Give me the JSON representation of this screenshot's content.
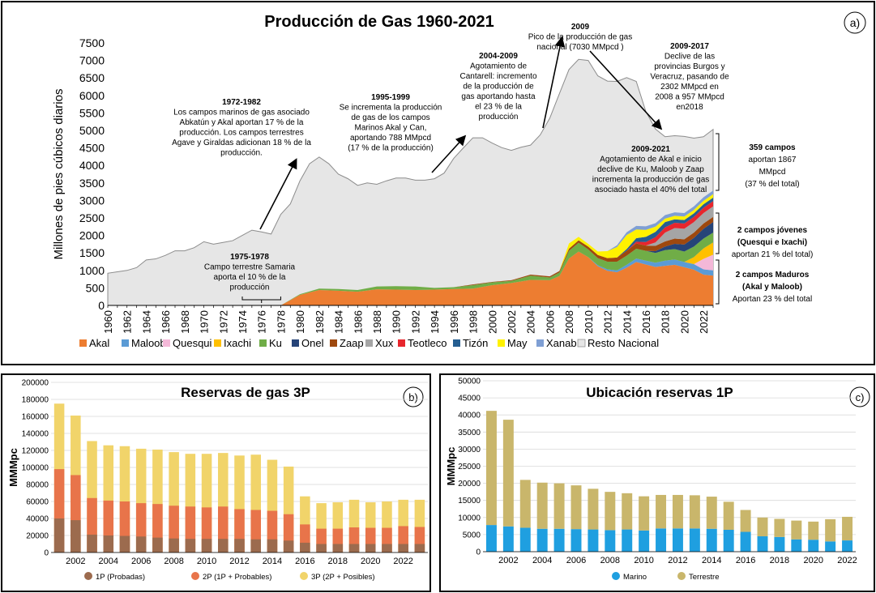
{
  "panel_a": {
    "label": "a)",
    "chart_data": {
      "type": "area",
      "title": "Producción de Gas 1960-2021",
      "ylabel": "Millones de pies cúbicos diarios",
      "xlabel": "",
      "ylim": [
        0,
        7500
      ],
      "xlim": [
        1960,
        2023
      ],
      "yticks": [
        "0",
        "500",
        "1000",
        "1500",
        "2000",
        "2500",
        "3000",
        "3500",
        "4000",
        "4500",
        "5000",
        "5500",
        "6000",
        "6500",
        "7000",
        "7500"
      ],
      "xticks": [
        "1960",
        "1962",
        "1964",
        "1966",
        "1968",
        "1970",
        "1972",
        "1974",
        "1976",
        "1978",
        "1980",
        "1982",
        "1984",
        "1986",
        "1988",
        "1990",
        "1992",
        "1994",
        "1996",
        "1998",
        "2000",
        "2002",
        "2004",
        "2006",
        "2008",
        "2010",
        "2012",
        "2014",
        "2016",
        "2018",
        "2020",
        "2022"
      ],
      "total": {
        "name": "Resto Nacional",
        "x": [
          1960,
          1961,
          1962,
          1963,
          1964,
          1965,
          1966,
          1967,
          1968,
          1969,
          1970,
          1971,
          1972,
          1973,
          1974,
          1975,
          1976,
          1977,
          1978,
          1979,
          1980,
          1981,
          1982,
          1983,
          1984,
          1985,
          1986,
          1987,
          1988,
          1989,
          1990,
          1991,
          1992,
          1993,
          1994,
          1995,
          1996,
          1997,
          1998,
          1999,
          2000,
          2001,
          2002,
          2003,
          2004,
          2005,
          2006,
          2007,
          2008,
          2009,
          2010,
          2011,
          2012,
          2013,
          2014,
          2015,
          2016,
          2017,
          2018,
          2019,
          2020,
          2021,
          2022,
          2023
        ],
        "values": [
          920,
          960,
          1000,
          1080,
          1300,
          1330,
          1430,
          1560,
          1560,
          1650,
          1820,
          1750,
          1800,
          1850,
          2000,
          2150,
          2100,
          2040,
          2600,
          2900,
          3560,
          4050,
          4240,
          4050,
          3750,
          3620,
          3430,
          3500,
          3460,
          3560,
          3640,
          3640,
          3580,
          3580,
          3620,
          3780,
          4200,
          4500,
          4790,
          4790,
          4640,
          4510,
          4430,
          4520,
          4580,
          4870,
          5350,
          6050,
          6740,
          7030,
          7000,
          6560,
          6410,
          6400,
          6510,
          6400,
          5540,
          5040,
          4820,
          4850,
          4830,
          4780,
          4820,
          5030
        ]
      },
      "stacked_series": {
        "x": [
          1978,
          1980,
          1982,
          1984,
          1986,
          1988,
          1990,
          1992,
          1994,
          1996,
          1998,
          2000,
          2002,
          2004,
          2006,
          2007,
          2008,
          2009,
          2010,
          2011,
          2012,
          2013,
          2014,
          2015,
          2016,
          2017,
          2018,
          2019,
          2020,
          2021,
          2022,
          2023
        ],
        "series": [
          {
            "name": "Akal",
            "color": "#ED7D31",
            "values": [
              0,
              300,
              440,
              420,
              390,
              460,
              450,
              440,
              450,
              470,
              480,
              580,
              640,
              730,
              720,
              840,
              1340,
              1540,
              1380,
              1120,
              990,
              950,
              1080,
              1240,
              1170,
              1100,
              1130,
              1160,
              1090,
              1020,
              880,
              850
            ]
          },
          {
            "name": "Maloob",
            "color": "#5B9BD5",
            "values": [
              0,
              0,
              0,
              0,
              0,
              0,
              0,
              0,
              0,
              0,
              0,
              0,
              0,
              0,
              0,
              0,
              0,
              0,
              0,
              30,
              40,
              50,
              80,
              100,
              110,
              120,
              150,
              150,
              150,
              160,
              150,
              150
            ]
          },
          {
            "name": "Quesqui",
            "color": "#F4B8D8",
            "values": [
              0,
              0,
              0,
              0,
              0,
              0,
              0,
              0,
              0,
              0,
              0,
              0,
              0,
              0,
              0,
              0,
              0,
              0,
              0,
              0,
              0,
              0,
              0,
              0,
              0,
              0,
              0,
              0,
              0,
              0,
              300,
              450
            ]
          },
          {
            "name": "Ixachi",
            "color": "#FFC000",
            "values": [
              0,
              0,
              0,
              0,
              0,
              0,
              0,
              0,
              0,
              0,
              0,
              0,
              0,
              0,
              0,
              0,
              0,
              0,
              0,
              0,
              0,
              0,
              0,
              0,
              0,
              0,
              0,
              0,
              0,
              200,
              300,
              350
            ]
          },
          {
            "name": "Ku",
            "color": "#70AD47",
            "values": [
              0,
              20,
              40,
              50,
              50,
              80,
              100,
              100,
              50,
              50,
              100,
              80,
              60,
              120,
              80,
              100,
              220,
              250,
              220,
              200,
              220,
              250,
              260,
              280,
              280,
              280,
              300,
              300,
              300,
              300,
              280,
              280
            ]
          },
          {
            "name": "Onel",
            "color": "#264478",
            "values": [
              0,
              0,
              0,
              0,
              0,
              0,
              0,
              0,
              0,
              0,
              0,
              0,
              0,
              0,
              0,
              0,
              0,
              0,
              0,
              0,
              0,
              0,
              0,
              0,
              0,
              50,
              100,
              150,
              200,
              250,
              280,
              300
            ]
          },
          {
            "name": "Zaap",
            "color": "#9E480E",
            "values": [
              0,
              0,
              0,
              0,
              0,
              0,
              0,
              0,
              0,
              0,
              20,
              10,
              20,
              30,
              30,
              40,
              60,
              70,
              80,
              90,
              100,
              120,
              140,
              150,
              150,
              150,
              150,
              150,
              150,
              150,
              150,
              150
            ]
          },
          {
            "name": "Xux",
            "color": "#A5A5A5",
            "values": [
              0,
              0,
              0,
              0,
              0,
              0,
              0,
              0,
              0,
              0,
              0,
              0,
              0,
              0,
              0,
              0,
              0,
              0,
              0,
              0,
              0,
              0,
              0,
              0,
              0,
              100,
              250,
              300,
              300,
              300,
              300,
              300
            ]
          },
          {
            "name": "Teotleco",
            "color": "#E7262D",
            "values": [
              0,
              0,
              0,
              0,
              0,
              0,
              0,
              0,
              0,
              0,
              0,
              0,
              0,
              0,
              0,
              0,
              0,
              0,
              0,
              0,
              0,
              0,
              0,
              50,
              100,
              150,
              150,
              150,
              150,
              150,
              150,
              150
            ]
          },
          {
            "name": "Tizón",
            "color": "#255E91",
            "values": [
              0,
              0,
              0,
              0,
              0,
              0,
              0,
              0,
              0,
              0,
              0,
              0,
              0,
              0,
              0,
              0,
              0,
              0,
              0,
              0,
              0,
              0,
              50,
              100,
              150,
              150,
              150,
              100,
              100,
              100,
              100,
              100
            ]
          },
          {
            "name": "May",
            "color": "#FFF200",
            "values": [
              0,
              0,
              0,
              0,
              0,
              0,
              0,
              0,
              0,
              0,
              0,
              0,
              0,
              0,
              0,
              0,
              150,
              100,
              80,
              100,
              200,
              300,
              400,
              250,
              200,
              150,
              100,
              100,
              100,
              100,
              100,
              100
            ]
          },
          {
            "name": "Xanab",
            "color": "#7F9FD4",
            "values": [
              0,
              0,
              0,
              0,
              0,
              0,
              0,
              0,
              0,
              0,
              0,
              0,
              0,
              0,
              0,
              0,
              0,
              0,
              0,
              0,
              0,
              50,
              80,
              100,
              100,
              100,
              100,
              100,
              100,
              100,
              100,
              100
            ]
          }
        ]
      },
      "legend": [
        "Akal",
        "Maloob",
        "Quesqui",
        "Ixachi",
        "Ku",
        "Onel",
        "Zaap",
        "Xux",
        "Teotleco",
        "Tizón",
        "May",
        "Xanab",
        "Resto Nacional"
      ]
    },
    "annotations": {
      "a1972": [
        "1972-1982",
        "Los campos marinos de gas asociado",
        "Abkatún y Akal aportan 17 % de la",
        "producción. Los campos terrestres",
        "Agave y Giraldas adicionan 18 % de la",
        "producción."
      ],
      "a1975": [
        "1975-1978",
        "Campo terrestre Samaria",
        "aporta el 10 %  de la",
        "producción"
      ],
      "a1995": [
        "1995-1999",
        "Se incrementa la producción",
        "de gas de  los campos",
        "Marinos Akal  y Can,",
        "aportando 788 MMpcd",
        "(17 % de la producción)"
      ],
      "a2004": [
        "2004-2009",
        "Agotamiento de",
        "Cantarell: incremento",
        "de la producción de",
        "gas aportando  hasta",
        "el 23 % de la",
        "producción"
      ],
      "a2009": [
        "2009",
        "Pico de la producción de gas",
        "nacional (7030 MMpcd )"
      ],
      "a20092017": [
        "2009-2017",
        "Declive de las",
        "provincias Burgos y",
        "Veracruz, pasando de",
        "2302 MMpcd  en",
        "2008 a 957 MMpcd",
        "en2018"
      ],
      "a20092021": [
        "2009-2021",
        "Agotamiento de Akal e inicio",
        "declive de Ku, Maloob y Zaap",
        "incrementa la producción de gas",
        "asociado hasta el 40% del total"
      ],
      "r359": [
        "359 campos",
        "aportan 1867",
        "MMpcd",
        "(37 % del total)"
      ],
      "rJovenes": [
        "2 campos jóvenes",
        "(Quesqui e Ixachi)",
        "aportan 21 % del total)"
      ],
      "rMaduros": [
        "2 campos Maduros",
        "(Akal y Maloob)",
        "Aportan 23 % del total"
      ]
    }
  },
  "panel_b": {
    "label": "b)",
    "chart_data": {
      "type": "bar",
      "title": "Reservas de gas 3P",
      "ylabel": "MMMpc",
      "ylim": [
        0,
        200000
      ],
      "yticks": [
        "0",
        "20000",
        "40000",
        "60000",
        "80000",
        "100000",
        "120000",
        "140000",
        "160000",
        "180000",
        "200000"
      ],
      "categories": [
        "2001",
        "2002",
        "2003",
        "2004",
        "2005",
        "2006",
        "2007",
        "2008",
        "2009",
        "2010",
        "2011",
        "2012",
        "2013",
        "2014",
        "2015",
        "2016",
        "2017",
        "2018",
        "2019",
        "2020",
        "2021",
        "2022",
        "2023"
      ],
      "xticks": [
        "2002",
        "2004",
        "2006",
        "2008",
        "2010",
        "2012",
        "2014",
        "2016",
        "2018",
        "2020",
        "2022"
      ],
      "series": [
        {
          "name": "1P (Probadas)",
          "color": "#9C6B4E",
          "values": [
            40000,
            38000,
            21000,
            20000,
            19500,
            18800,
            17500,
            16500,
            16000,
            16000,
            16000,
            16000,
            15500,
            15500,
            14000,
            11500,
            10000,
            10000,
            10000,
            10000,
            10000,
            10000,
            10000
          ]
        },
        {
          "name": "2P (1P + Probables)",
          "color": "#E8744A",
          "values": [
            98000,
            91000,
            64000,
            61000,
            60000,
            58000,
            57000,
            55000,
            54000,
            53000,
            54000,
            51000,
            50000,
            49000,
            45000,
            33000,
            28000,
            28000,
            29500,
            29000,
            29000,
            31000,
            30000
          ]
        },
        {
          "name": "3P (2P + Posibles)",
          "color": "#F1D46A",
          "values": [
            175000,
            161000,
            131000,
            126000,
            125000,
            122000,
            121000,
            118000,
            116000,
            116000,
            117000,
            114000,
            115000,
            109000,
            101000,
            66000,
            58000,
            59000,
            62000,
            59000,
            60000,
            62000,
            62000
          ]
        }
      ]
    }
  },
  "panel_c": {
    "label": "c)",
    "chart_data": {
      "type": "bar",
      "title": "Ubicación reservas 1P",
      "ylabel": "MMMpc",
      "ylim": [
        0,
        50000
      ],
      "yticks": [
        "0",
        "5000",
        "10000",
        "15000",
        "20000",
        "25000",
        "30000",
        "35000",
        "40000",
        "45000",
        "50000"
      ],
      "categories": [
        "2001",
        "2002",
        "2003",
        "2004",
        "2005",
        "2006",
        "2007",
        "2008",
        "2009",
        "2010",
        "2011",
        "2012",
        "2013",
        "2014",
        "2015",
        "2016",
        "2017",
        "2018",
        "2019",
        "2020",
        "2021",
        "2022"
      ],
      "xticks": [
        "2002",
        "2004",
        "2006",
        "2008",
        "2010",
        "2012",
        "2014",
        "2016",
        "2018",
        "2020",
        "2022"
      ],
      "series": [
        {
          "name": "Marino",
          "color": "#1F9FE0",
          "values": [
            7800,
            7400,
            7000,
            6700,
            6700,
            6600,
            6500,
            6300,
            6500,
            6200,
            6800,
            6800,
            6800,
            6700,
            6400,
            5800,
            4500,
            4300,
            3600,
            3500,
            3000,
            3300
          ]
        },
        {
          "name": "Terrestre",
          "color": "#C9B66B",
          "values": [
            33400,
            31200,
            14000,
            13500,
            13300,
            12800,
            11900,
            11200,
            10600,
            10000,
            9800,
            9800,
            9700,
            9400,
            8200,
            6400,
            5500,
            5300,
            5500,
            5300,
            6500,
            6900
          ]
        }
      ]
    }
  }
}
